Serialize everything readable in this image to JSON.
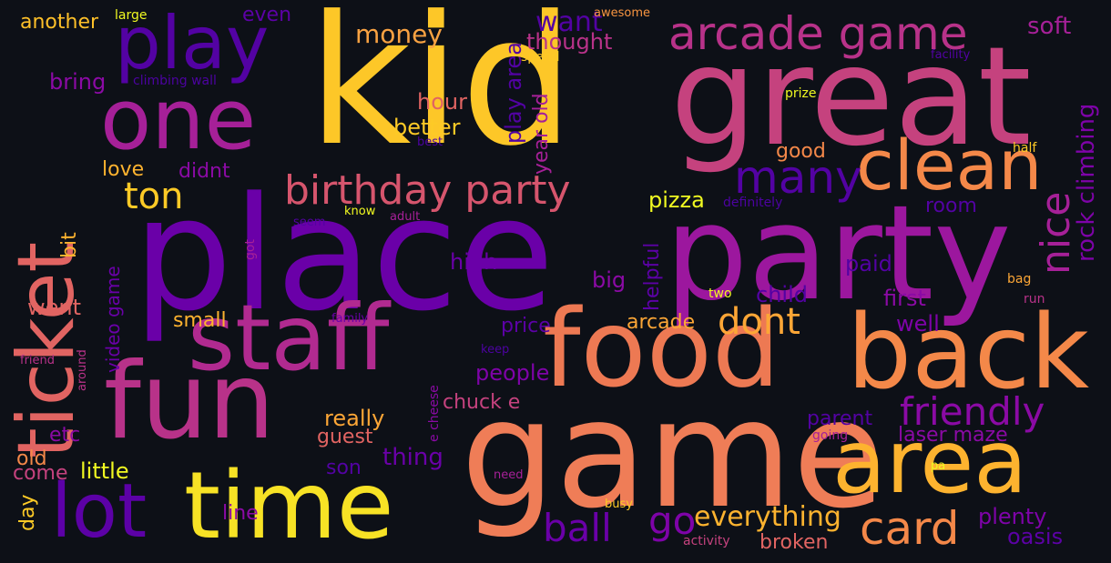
{
  "words": [
    {
      "id": "kid",
      "text": "kid",
      "color": "#fdc728"
    },
    {
      "id": "great",
      "text": "great",
      "color": "#c5427e"
    },
    {
      "id": "place",
      "text": "place",
      "color": "#6a00a8"
    },
    {
      "id": "party",
      "text": "party",
      "color": "#9c179e"
    },
    {
      "id": "game",
      "text": "game",
      "color": "#ef7d57"
    },
    {
      "id": "food",
      "text": "food",
      "color": "#ed7953"
    },
    {
      "id": "back",
      "text": "back",
      "color": "#f48849"
    },
    {
      "id": "fun",
      "text": "fun",
      "color": "#b83289"
    },
    {
      "id": "staff",
      "text": "staff",
      "color": "#b12a90"
    },
    {
      "id": "time",
      "text": "time",
      "color": "#f7e225"
    },
    {
      "id": "ticket",
      "text": "ticket",
      "color": "#e16462"
    },
    {
      "id": "one",
      "text": "one",
      "color": "#a62098"
    },
    {
      "id": "play",
      "text": "play",
      "color": "#5302a3"
    },
    {
      "id": "area",
      "text": "area",
      "color": "#fdb32f"
    },
    {
      "id": "clean",
      "text": "clean",
      "color": "#f48849"
    },
    {
      "id": "lot",
      "text": "lot",
      "color": "#5c01a6"
    },
    {
      "id": "arcade-game",
      "text": "arcade game",
      "color": "#b83289"
    },
    {
      "id": "birthday-party",
      "text": "birthday party",
      "color": "#d6556d"
    },
    {
      "id": "card",
      "text": "card",
      "color": "#f48849"
    },
    {
      "id": "many",
      "text": "many",
      "color": "#5302a3"
    },
    {
      "id": "friendly",
      "text": "friendly",
      "color": "#8b0aa5"
    },
    {
      "id": "nice",
      "text": "nice",
      "color": "#a62098"
    },
    {
      "id": "rock-climbing",
      "text": "rock climbing",
      "color": "#7e03a8"
    },
    {
      "id": "ton",
      "text": "ton",
      "color": "#fdca26"
    },
    {
      "id": "dont",
      "text": "dont",
      "color": "#fca636"
    },
    {
      "id": "ball",
      "text": "ball",
      "color": "#6a00a8"
    },
    {
      "id": "go",
      "text": "go",
      "color": "#7e03a8"
    },
    {
      "id": "everything",
      "text": "everything",
      "color": "#fdb32f"
    },
    {
      "id": "money",
      "text": "money",
      "color": "#f9a242"
    },
    {
      "id": "thought",
      "text": "thought",
      "color": "#b83289"
    },
    {
      "id": "want",
      "text": "want",
      "color": "#5302a3"
    },
    {
      "id": "soft",
      "text": "soft",
      "color": "#a62098"
    },
    {
      "id": "another",
      "text": "another",
      "color": "#fec029"
    },
    {
      "id": "large",
      "text": "large",
      "color": "#f0f921"
    },
    {
      "id": "even",
      "text": "even",
      "color": "#5c01a6"
    },
    {
      "id": "awesome",
      "text": "awesome",
      "color": "#f89540"
    },
    {
      "id": "facility",
      "text": "facility",
      "color": "#5302a3"
    },
    {
      "id": "bring",
      "text": "bring",
      "color": "#8b0aa5"
    },
    {
      "id": "climbing-wall",
      "text": "climbing wall",
      "color": "#4c02a1"
    },
    {
      "id": "hour",
      "text": "hour",
      "color": "#e16462"
    },
    {
      "id": "better",
      "text": "better",
      "color": "#fdca26"
    },
    {
      "id": "best",
      "text": "best",
      "color": "#4c02a1"
    },
    {
      "id": "play-area",
      "text": "play area",
      "color": "#5302a3"
    },
    {
      "id": "year-old",
      "text": "year old",
      "color": "#a62098"
    },
    {
      "id": "spend",
      "text": "spend",
      "color": "#fdca26"
    },
    {
      "id": "prize",
      "text": "prize",
      "color": "#f0f921"
    },
    {
      "id": "half",
      "text": "half",
      "color": "#fdca26"
    },
    {
      "id": "good",
      "text": "good",
      "color": "#f48849"
    },
    {
      "id": "love",
      "text": "love",
      "color": "#fdb32f"
    },
    {
      "id": "didnt",
      "text": "didnt",
      "color": "#8b0aa5"
    },
    {
      "id": "pizza",
      "text": "pizza",
      "color": "#f0f921"
    },
    {
      "id": "definitely",
      "text": "definitely",
      "color": "#4c02a1"
    },
    {
      "id": "room",
      "text": "room",
      "color": "#5302a3"
    },
    {
      "id": "bit",
      "text": "bit",
      "color": "#fdb32f"
    },
    {
      "id": "know",
      "text": "know",
      "color": "#f0f921"
    },
    {
      "id": "adult",
      "text": "adult",
      "color": "#a62098"
    },
    {
      "id": "seem",
      "text": "seem",
      "color": "#5302a3"
    },
    {
      "id": "got",
      "text": "got",
      "color": "#a62098"
    },
    {
      "id": "high",
      "text": "high",
      "color": "#6a00a8"
    },
    {
      "id": "big",
      "text": "big",
      "color": "#8b0aa5"
    },
    {
      "id": "helpful",
      "text": "helpful",
      "color": "#5c01a6"
    },
    {
      "id": "paid",
      "text": "paid",
      "color": "#5302a3"
    },
    {
      "id": "two",
      "text": "two",
      "color": "#f0f921"
    },
    {
      "id": "bag",
      "text": "bag",
      "color": "#fca636"
    },
    {
      "id": "run",
      "text": "run",
      "color": "#b83289"
    },
    {
      "id": "went",
      "text": "went",
      "color": "#e16462"
    },
    {
      "id": "video-game",
      "text": "video game",
      "color": "#6a00a8"
    },
    {
      "id": "small",
      "text": "small",
      "color": "#fdb32f"
    },
    {
      "id": "child",
      "text": "child",
      "color": "#5302a3"
    },
    {
      "id": "first",
      "text": "first",
      "color": "#8b0aa5"
    },
    {
      "id": "well",
      "text": "well",
      "color": "#7e03a8"
    },
    {
      "id": "family",
      "text": "family",
      "color": "#6a00a8"
    },
    {
      "id": "arcade",
      "text": "arcade",
      "color": "#fca636"
    },
    {
      "id": "price",
      "text": "price",
      "color": "#5c01a6"
    },
    {
      "id": "friend",
      "text": "friend",
      "color": "#b83289"
    },
    {
      "id": "around",
      "text": "around",
      "color": "#b83289"
    },
    {
      "id": "keep",
      "text": "keep",
      "color": "#4c02a1"
    },
    {
      "id": "people",
      "text": "people",
      "color": "#7e03a8"
    },
    {
      "id": "chuck-e",
      "text": "chuck e",
      "color": "#c5427e"
    },
    {
      "id": "e-cheese",
      "text": "e cheese",
      "color": "#8b0aa5"
    },
    {
      "id": "really",
      "text": "really",
      "color": "#fca636"
    },
    {
      "id": "guest",
      "text": "guest",
      "color": "#e16462"
    },
    {
      "id": "parent",
      "text": "parent",
      "color": "#5302a3"
    },
    {
      "id": "etc",
      "text": "etc",
      "color": "#8b0aa5"
    },
    {
      "id": "thing",
      "text": "thing",
      "color": "#6a00a8"
    },
    {
      "id": "going",
      "text": "going",
      "color": "#a62098"
    },
    {
      "id": "laser-maze",
      "text": "laser maze",
      "color": "#8b0aa5"
    },
    {
      "id": "old",
      "text": "old",
      "color": "#f48849"
    },
    {
      "id": "come",
      "text": "come",
      "color": "#c5427e"
    },
    {
      "id": "little",
      "text": "little",
      "color": "#f0f921"
    },
    {
      "id": "son",
      "text": "son",
      "color": "#5302a3"
    },
    {
      "id": "need",
      "text": "need",
      "color": "#a62098"
    },
    {
      "id": "pa",
      "text": "pa",
      "color": "#f0f921"
    },
    {
      "id": "day",
      "text": "day",
      "color": "#fdca26"
    },
    {
      "id": "line",
      "text": "line",
      "color": "#8b0aa5"
    },
    {
      "id": "busy",
      "text": "busy",
      "color": "#fdca26"
    },
    {
      "id": "plenty",
      "text": "plenty",
      "color": "#7e03a8"
    },
    {
      "id": "oasis",
      "text": "oasis",
      "color": "#5c01a6"
    },
    {
      "id": "activity",
      "text": "activity",
      "color": "#c5427e"
    },
    {
      "id": "broken",
      "text": "broken",
      "color": "#e16462"
    }
  ]
}
